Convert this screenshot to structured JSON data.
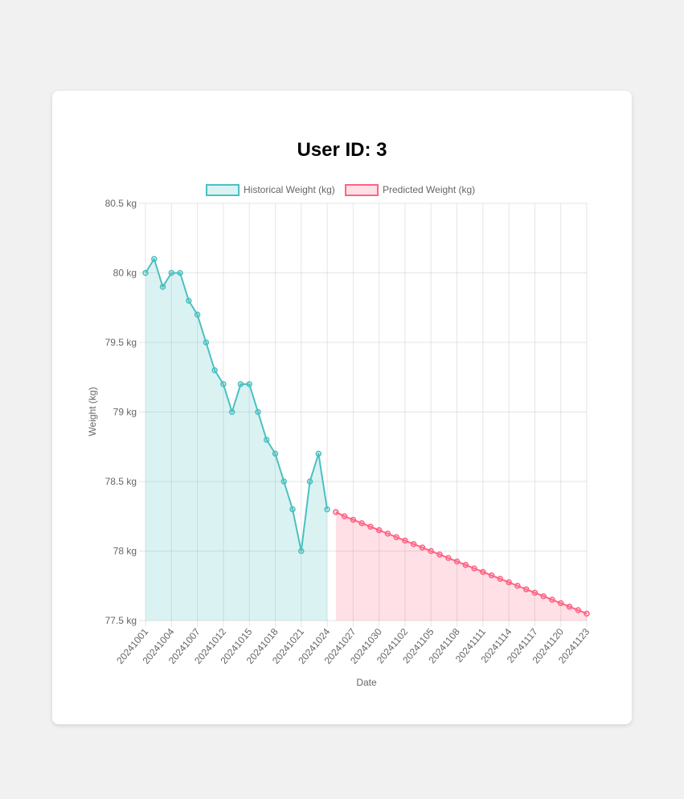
{
  "title": "User ID: 3",
  "chart_data": {
    "type": "line",
    "title": "User ID: 3",
    "xlabel": "Date",
    "ylabel": "Weight (kg)",
    "ylim": [
      77.5,
      80.5
    ],
    "y_ticks": [
      "80.5 kg",
      "80 kg",
      "79.5 kg",
      "79 kg",
      "78.5 kg",
      "78 kg",
      "77.5 kg"
    ],
    "y_tick_values": [
      80.5,
      80,
      79.5,
      79,
      78.5,
      78,
      77.5
    ],
    "grid": true,
    "legend_position": "top",
    "x_tick_labels": [
      "20241001",
      "20241004",
      "20241007",
      "20241012",
      "20241015",
      "20241018",
      "20241021",
      "20241024",
      "20241027",
      "20241030",
      "20241102",
      "20241105",
      "20241108",
      "20241111",
      "20241114",
      "20241117",
      "20241120",
      "20241123"
    ],
    "series": [
      {
        "name": "Historical Weight (kg)",
        "color": "#4bc0c0",
        "fill": "rgba(75,192,192,0.2)",
        "values": [
          80.0,
          80.1,
          79.9,
          80.0,
          80.0,
          79.8,
          79.7,
          79.5,
          79.3,
          79.2,
          79.0,
          79.2,
          79.2,
          79.0,
          78.8,
          78.7,
          78.5,
          78.3,
          78.0,
          78.5,
          78.7,
          78.3
        ]
      },
      {
        "name": "Predicted Weight (kg)",
        "color": "#ff6384",
        "fill": "rgba(255,99,132,0.2)",
        "values": [
          78.28,
          78.25,
          78.225,
          78.2,
          78.175,
          78.15,
          78.125,
          78.1,
          78.075,
          78.05,
          78.025,
          78.0,
          77.975,
          77.95,
          77.925,
          77.9,
          77.875,
          77.85,
          77.825,
          77.8,
          77.775,
          77.75,
          77.725,
          77.7,
          77.675,
          77.65,
          77.625,
          77.6,
          77.575,
          77.55
        ]
      }
    ]
  }
}
